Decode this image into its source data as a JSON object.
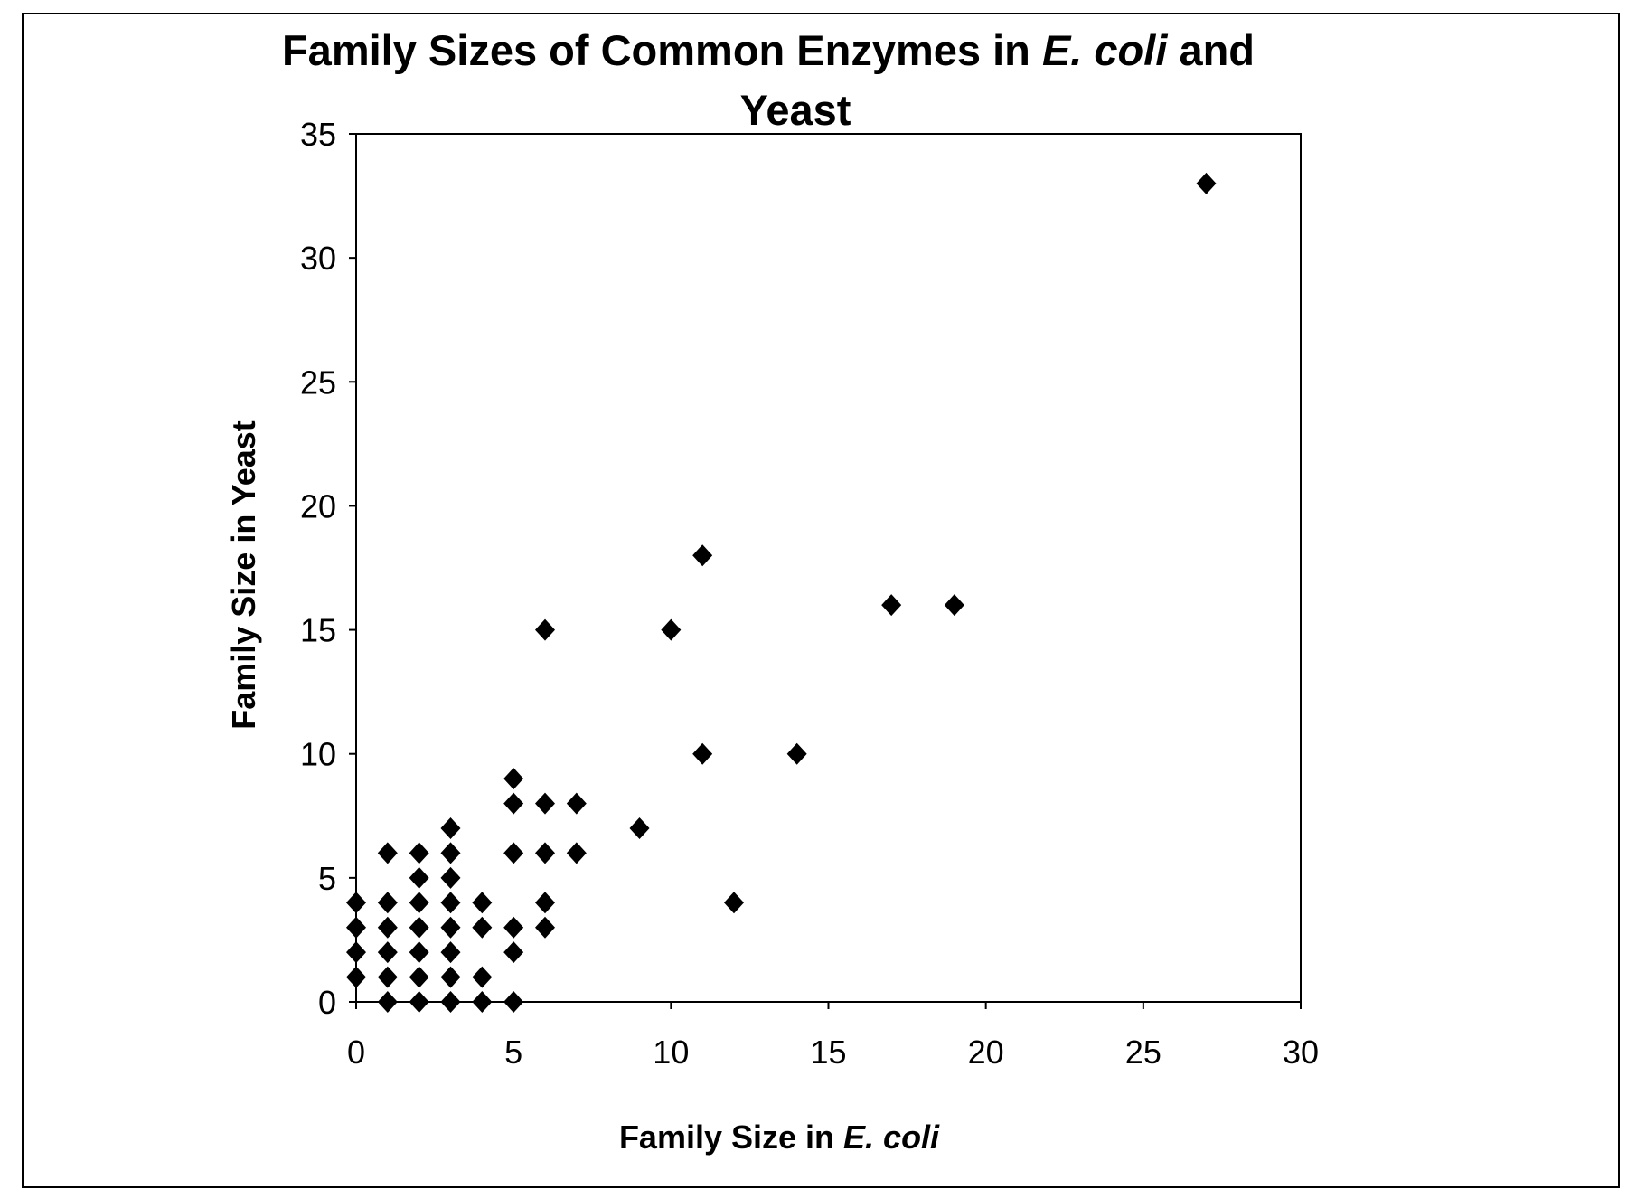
{
  "chart_data": {
    "type": "scatter",
    "title_line1_prefix": "Family Sizes of Common Enzymes in ",
    "title_line1_italic": "E. coli",
    "title_line1_suffix": " and",
    "title_line2": "Yeast",
    "xlabel_prefix": "Family Size in ",
    "xlabel_italic": "E. coli",
    "ylabel": "Family Size in Yeast",
    "xlim": [
      0,
      30
    ],
    "ylim": [
      0,
      35
    ],
    "x_ticks": [
      "0",
      "5",
      "10",
      "15",
      "20",
      "25",
      "30"
    ],
    "y_ticks": [
      "0",
      "5",
      "10",
      "15",
      "20",
      "25",
      "30",
      "35"
    ],
    "grid": false,
    "legend": "none",
    "marker": "diamond",
    "marker_color": "#000000",
    "points": [
      [
        0,
        1
      ],
      [
        0,
        2
      ],
      [
        0,
        3
      ],
      [
        0,
        4
      ],
      [
        1,
        0
      ],
      [
        1,
        1
      ],
      [
        1,
        2
      ],
      [
        1,
        3
      ],
      [
        1,
        4
      ],
      [
        1,
        6
      ],
      [
        2,
        0
      ],
      [
        2,
        1
      ],
      [
        2,
        2
      ],
      [
        2,
        3
      ],
      [
        2,
        4
      ],
      [
        2,
        5
      ],
      [
        2,
        6
      ],
      [
        3,
        0
      ],
      [
        3,
        1
      ],
      [
        3,
        2
      ],
      [
        3,
        3
      ],
      [
        3,
        4
      ],
      [
        3,
        5
      ],
      [
        3,
        6
      ],
      [
        3,
        7
      ],
      [
        4,
        0
      ],
      [
        4,
        1
      ],
      [
        4,
        3
      ],
      [
        4,
        4
      ],
      [
        5,
        0
      ],
      [
        5,
        2
      ],
      [
        5,
        3
      ],
      [
        5,
        6
      ],
      [
        5,
        8
      ],
      [
        5,
        9
      ],
      [
        6,
        3
      ],
      [
        6,
        4
      ],
      [
        6,
        6
      ],
      [
        6,
        8
      ],
      [
        6,
        15
      ],
      [
        7,
        6
      ],
      [
        7,
        8
      ],
      [
        9,
        7
      ],
      [
        10,
        15
      ],
      [
        11,
        10
      ],
      [
        11,
        18
      ],
      [
        12,
        4
      ],
      [
        14,
        10
      ],
      [
        17,
        16
      ],
      [
        19,
        16
      ],
      [
        27,
        33
      ]
    ]
  }
}
